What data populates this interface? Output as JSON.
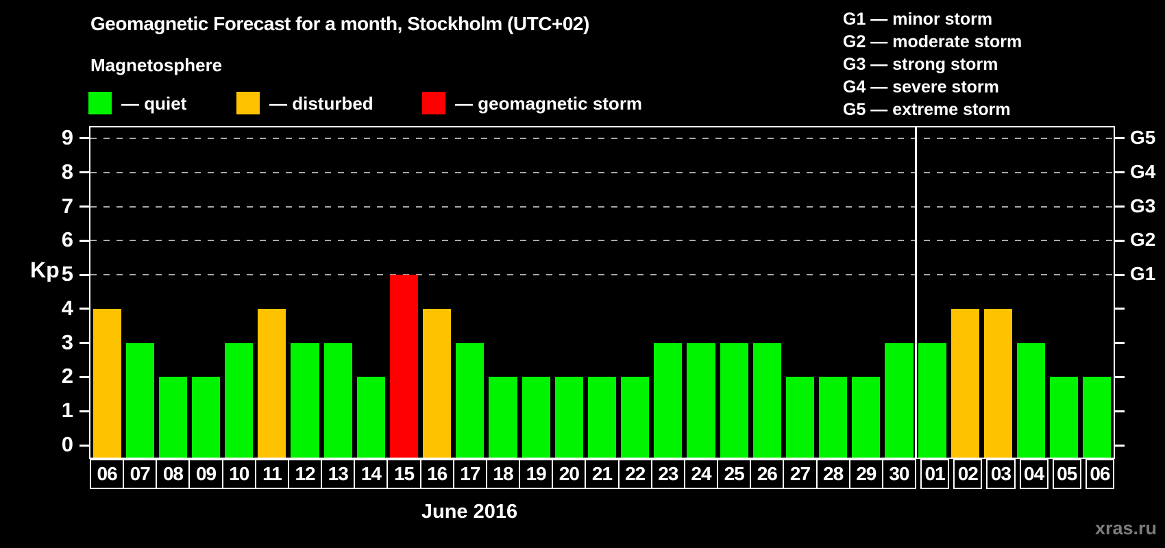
{
  "legend": {
    "title": "Magnetosphere",
    "items": [
      {
        "label": "— quiet",
        "status": "quiet"
      },
      {
        "label": "— disturbed",
        "status": "disturbed"
      },
      {
        "label": "— geomagnetic storm",
        "status": "storm"
      }
    ]
  },
  "g_legend": [
    "G1 — minor storm",
    "G2 — moderate storm",
    "G3 — strong storm",
    "G4 — severe storm",
    "G5 — extreme storm"
  ],
  "colors": {
    "quiet": "#00f400",
    "disturbed": "#ffc200",
    "storm": "#ff0000",
    "frame": "#ffffff",
    "grid": "#a8a8a8",
    "background": "#000000",
    "watermark": "#7d7d7d"
  },
  "watermark": "xras.ru",
  "chart_data": {
    "type": "bar",
    "title": "Geomagnetic Forecast for a month, Stockholm (UTC+02)",
    "xlabel": "June 2016",
    "ylabel": "Kp",
    "ylim": [
      0,
      9
    ],
    "grid": "dashed horizontal at Kp 5-9 only",
    "legend_position": "top-left and top-right",
    "x": [
      "06",
      "07",
      "08",
      "09",
      "10",
      "11",
      "12",
      "13",
      "14",
      "15",
      "16",
      "17",
      "18",
      "19",
      "20",
      "21",
      "22",
      "23",
      "24",
      "25",
      "26",
      "27",
      "28",
      "29",
      "30",
      "01",
      "02",
      "03",
      "04",
      "05",
      "06"
    ],
    "values": [
      4,
      3,
      2,
      2,
      3,
      4,
      3,
      3,
      2,
      5,
      4,
      3,
      2,
      2,
      2,
      2,
      2,
      3,
      3,
      3,
      3,
      2,
      2,
      2,
      3,
      3,
      4,
      4,
      3,
      2,
      2
    ],
    "statuses": [
      "disturbed",
      "quiet",
      "quiet",
      "quiet",
      "quiet",
      "disturbed",
      "quiet",
      "quiet",
      "quiet",
      "storm",
      "disturbed",
      "quiet",
      "quiet",
      "quiet",
      "quiet",
      "quiet",
      "quiet",
      "quiet",
      "quiet",
      "quiet",
      "quiet",
      "quiet",
      "quiet",
      "quiet",
      "quiet",
      "quiet",
      "disturbed",
      "disturbed",
      "quiet",
      "quiet",
      "quiet"
    ],
    "month_separator_index": 25,
    "grid_kp_levels": [
      5,
      6,
      7,
      8,
      9
    ],
    "left_ticks": [
      "0",
      "1",
      "2",
      "3",
      "4",
      "5",
      "6",
      "7",
      "8",
      "9"
    ],
    "right_axis_labels": {
      "5": "G1",
      "6": "G2",
      "7": "G3",
      "8": "G4",
      "9": "G5"
    }
  }
}
